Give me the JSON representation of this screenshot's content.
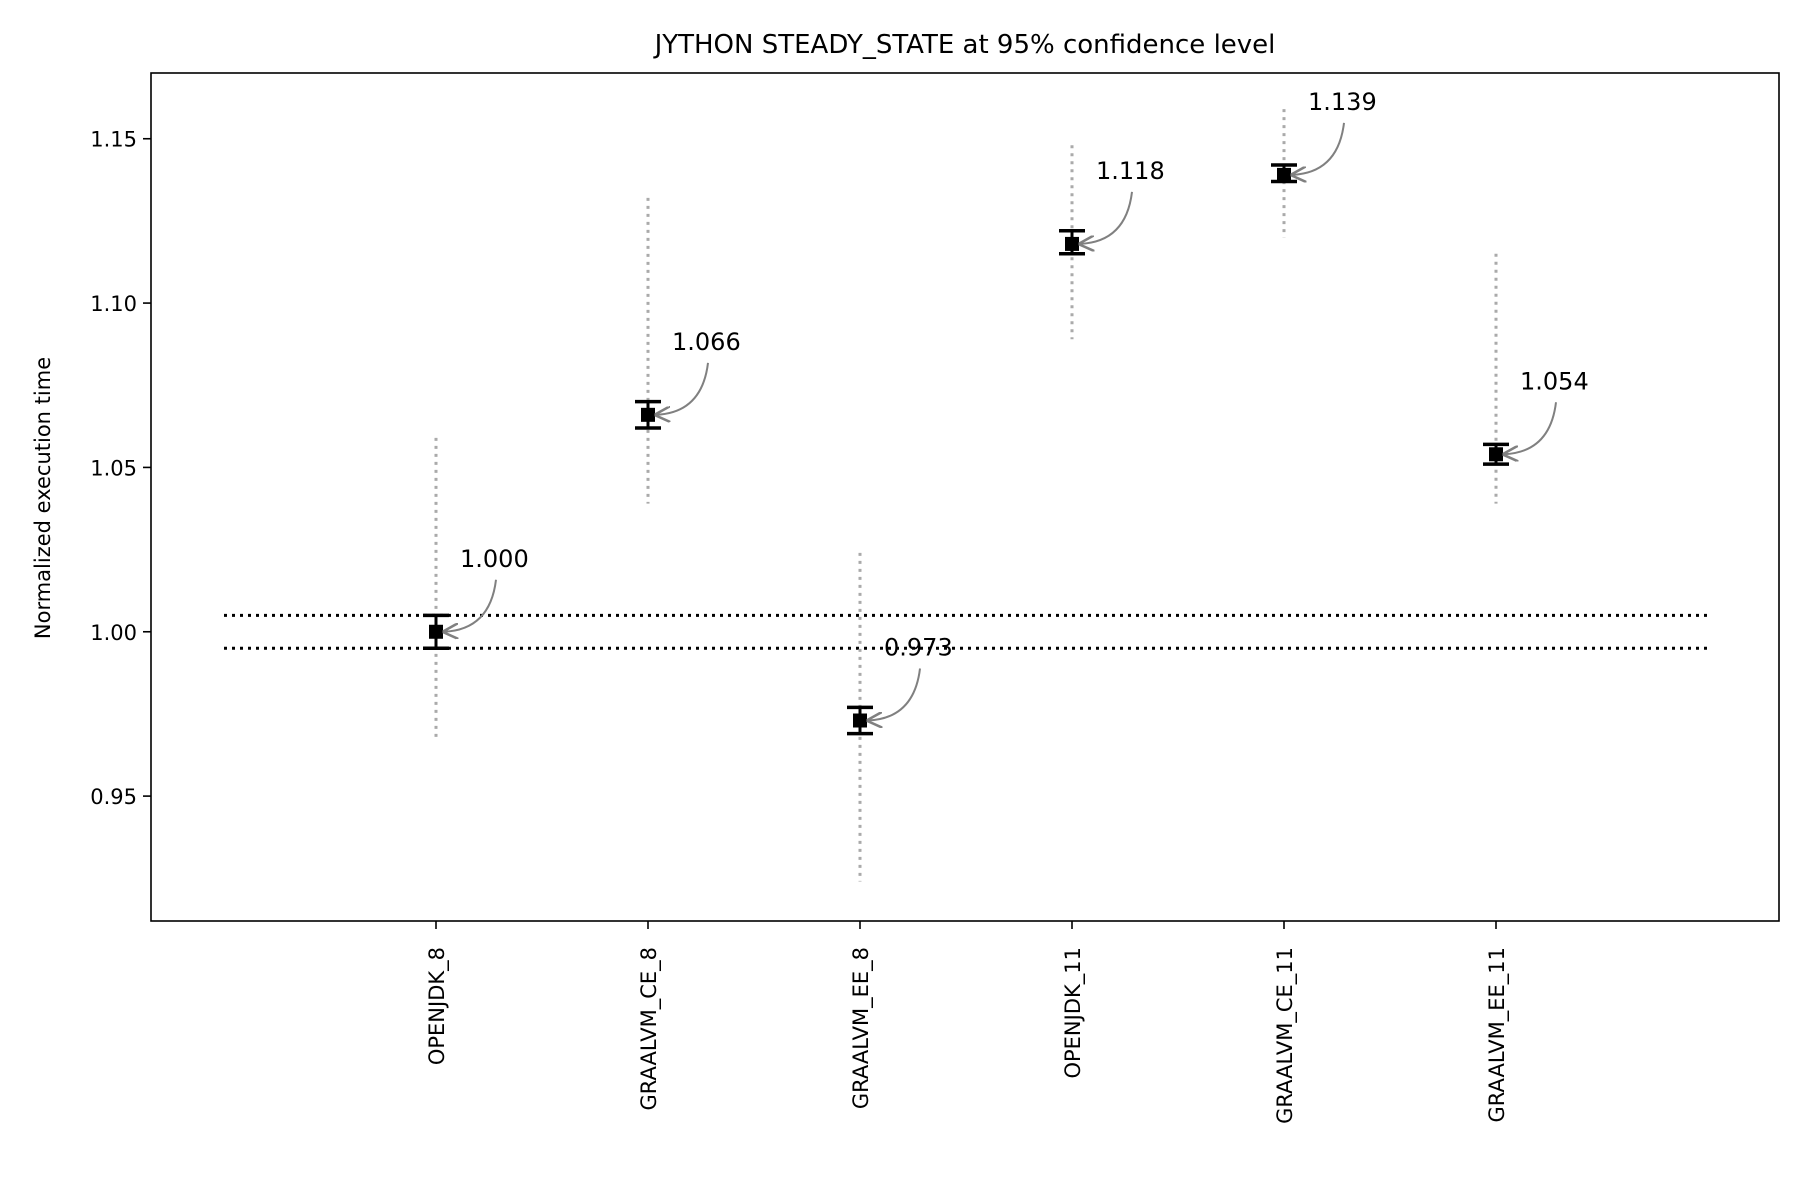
{
  "chart_data": {
    "type": "scatter",
    "title": "JYTHON STEADY_STATE at 95% confidence level",
    "xlabel": "",
    "ylabel": "Normalized execution time",
    "ylim": [
      0.912,
      1.17
    ],
    "yticks": [
      0.95,
      1.0,
      1.05,
      1.1,
      1.15
    ],
    "ytick_labels": [
      "0.95",
      "1.00",
      "1.05",
      "1.10",
      "1.15"
    ],
    "grid": false,
    "reference_band": {
      "lower": 0.995,
      "upper": 1.005,
      "style": "dotted"
    },
    "categories": [
      "OPENJDK_8",
      "GRAALVM_CE_8",
      "GRAALVM_EE_8",
      "OPENJDK_11",
      "GRAALVM_CE_11",
      "GRAALVM_EE_11"
    ],
    "points": [
      {
        "category": "OPENJDK_8",
        "value": 1.0,
        "label": "1.000",
        "ci_low": 0.995,
        "ci_high": 1.005,
        "range_low": 0.967,
        "range_high": 1.059
      },
      {
        "category": "GRAALVM_CE_8",
        "value": 1.066,
        "label": "1.066",
        "ci_low": 1.062,
        "ci_high": 1.07,
        "range_low": 1.039,
        "range_high": 1.132
      },
      {
        "category": "GRAALVM_EE_8",
        "value": 0.973,
        "label": "0.973",
        "ci_low": 0.969,
        "ci_high": 0.977,
        "range_low": 0.924,
        "range_high": 1.024
      },
      {
        "category": "OPENJDK_11",
        "value": 1.118,
        "label": "1.118",
        "ci_low": 1.115,
        "ci_high": 1.122,
        "range_low": 1.089,
        "range_high": 1.148
      },
      {
        "category": "GRAALVM_CE_11",
        "value": 1.139,
        "label": "1.139",
        "ci_low": 1.137,
        "ci_high": 1.142,
        "range_low": 1.12,
        "range_high": 1.159
      },
      {
        "category": "GRAALVM_EE_11",
        "value": 1.054,
        "label": "1.054",
        "ci_low": 1.051,
        "ci_high": 1.057,
        "range_low": 1.039,
        "range_high": 1.115
      }
    ],
    "colors": {
      "marker": "#000000",
      "range_line": "#aaaaaa",
      "annotation_arrow": "#808080",
      "reference_line": "#000000"
    }
  }
}
